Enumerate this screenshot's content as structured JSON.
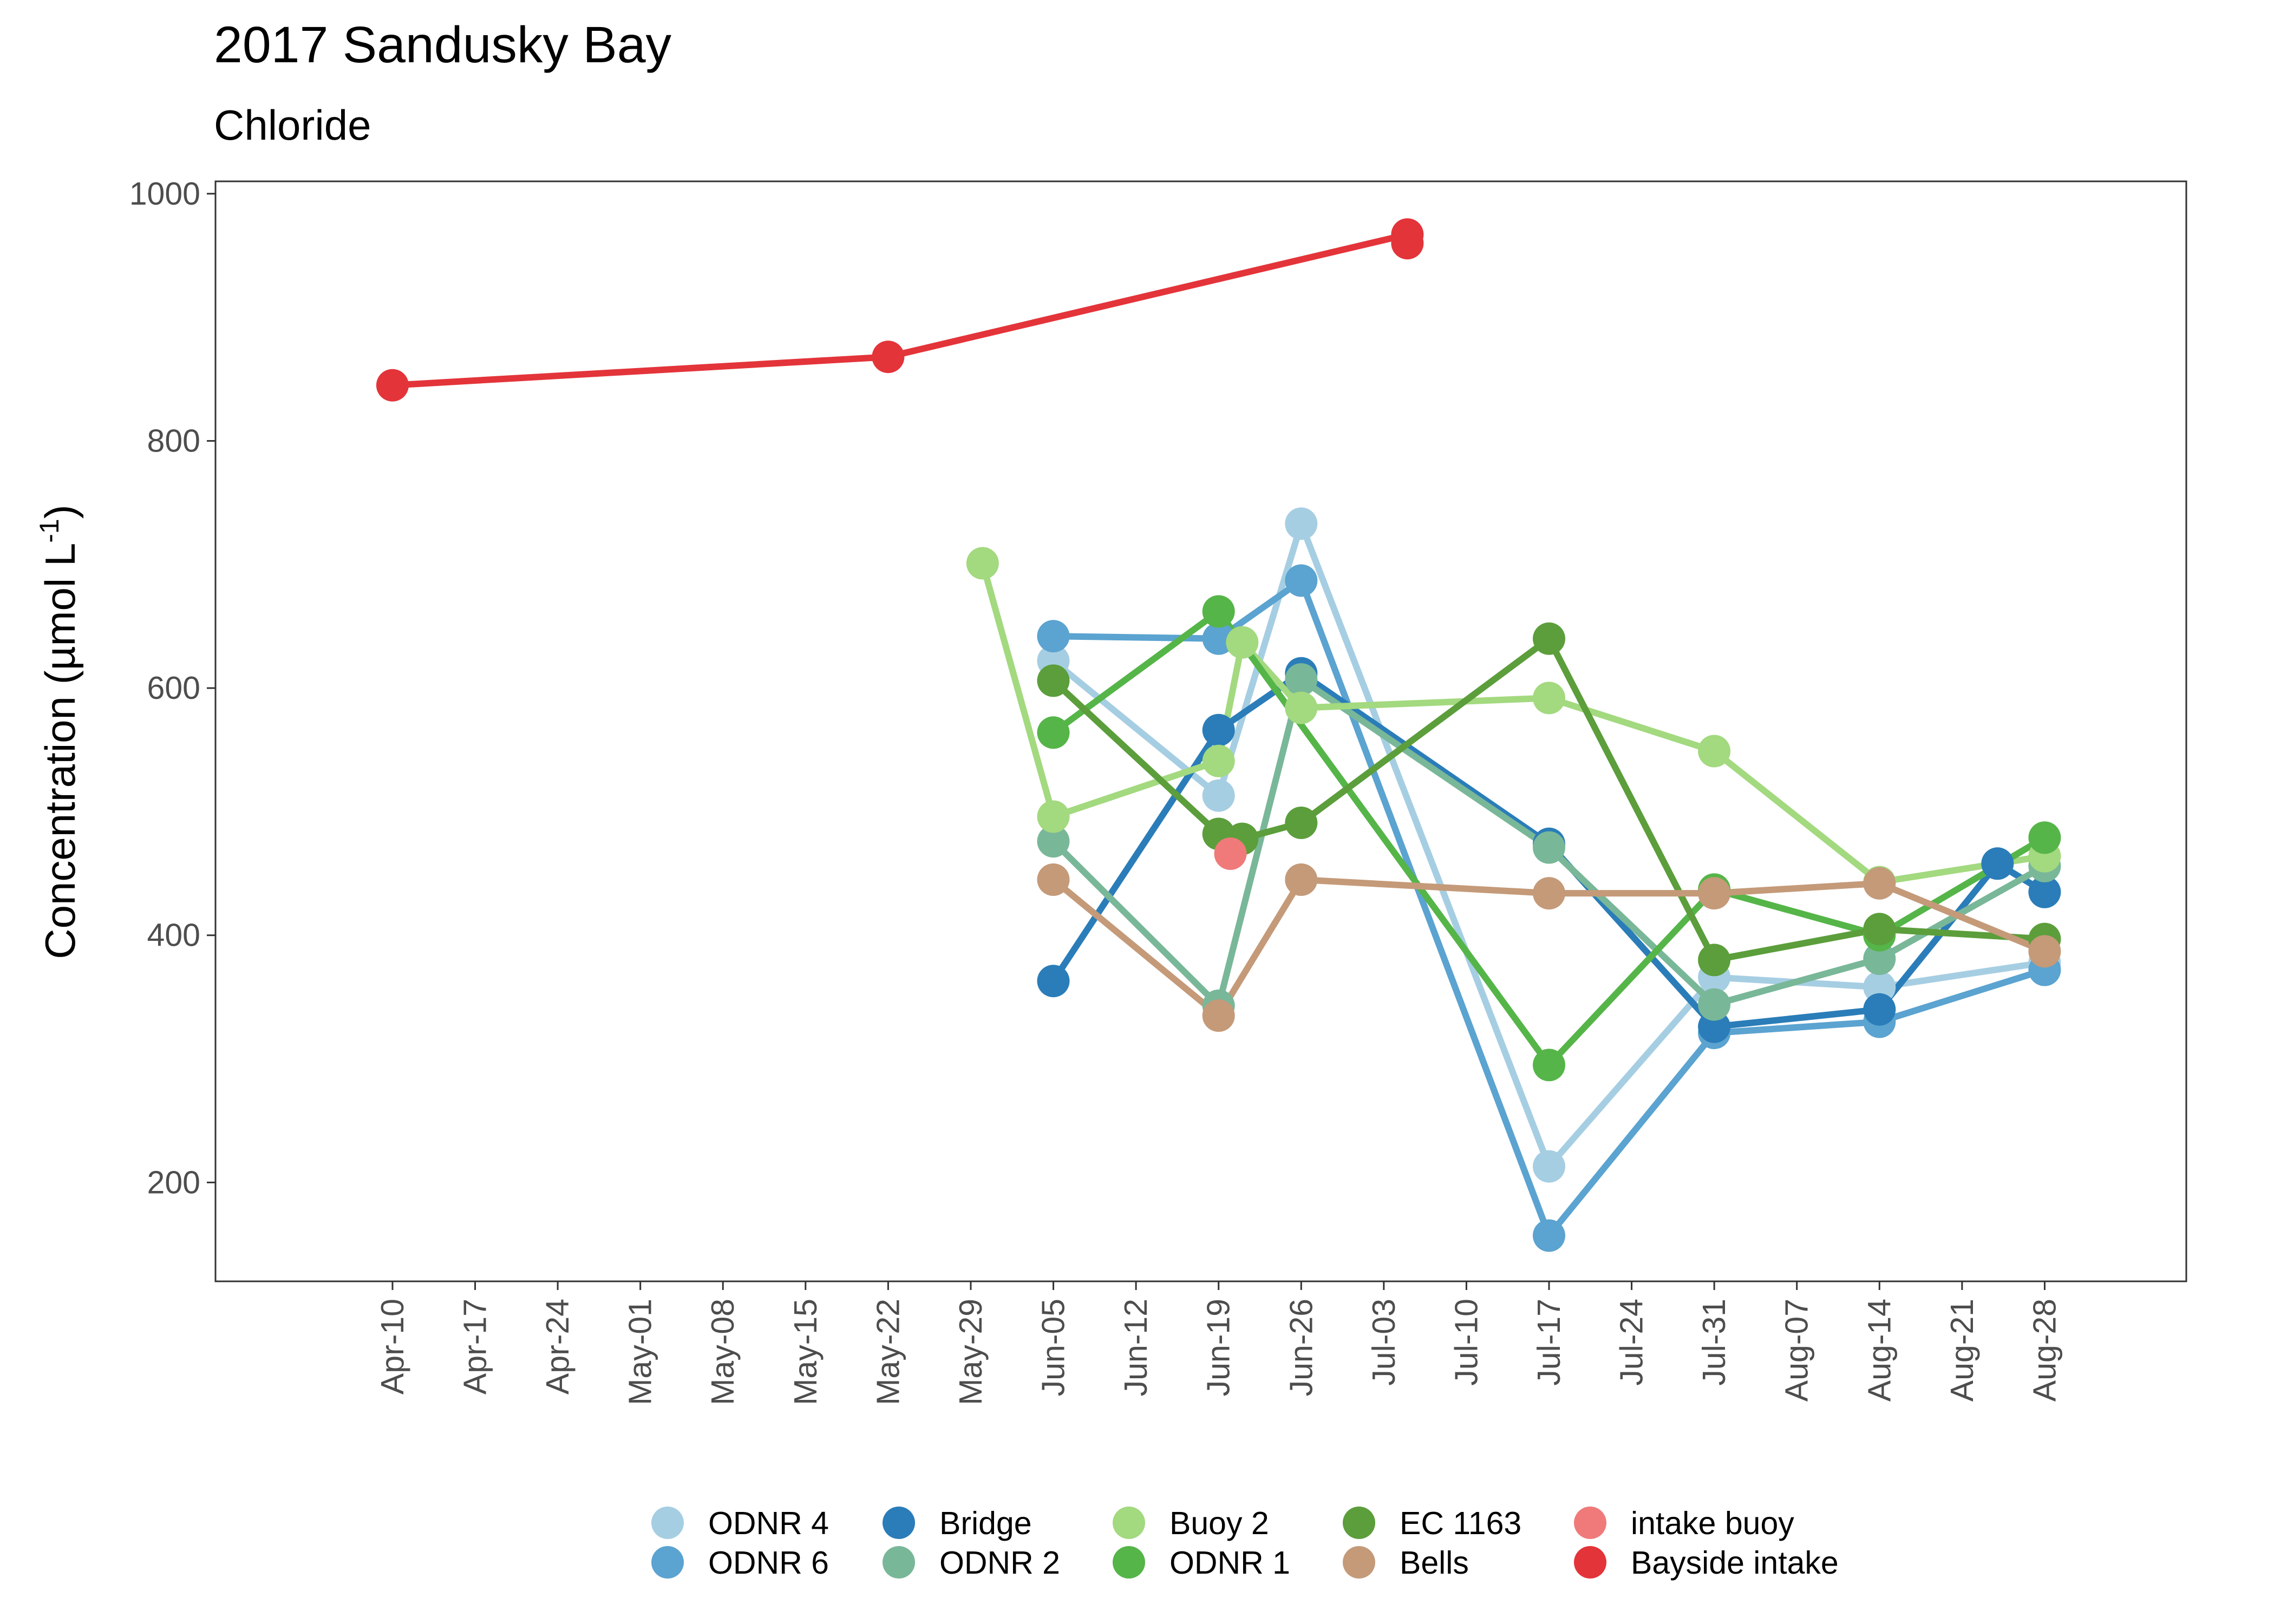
{
  "chart_data": {
    "type": "line",
    "title": "2017 Sandusky Bay",
    "subtitle": "Chloride",
    "xlabel": "",
    "ylabel": "Concentration (µmol L",
    "ylabel_sup": "-1",
    "ylabel_close": ")",
    "x_range": [
      "2017-03-26",
      "2017-09-09"
    ],
    "ylim": [
      120,
      1010
    ],
    "x_ticks": [
      "2017-04-10",
      "2017-04-17",
      "2017-04-24",
      "2017-05-01",
      "2017-05-08",
      "2017-05-15",
      "2017-05-22",
      "2017-05-29",
      "2017-06-05",
      "2017-06-12",
      "2017-06-19",
      "2017-06-26",
      "2017-07-03",
      "2017-07-10",
      "2017-07-17",
      "2017-07-24",
      "2017-07-31",
      "2017-08-07",
      "2017-08-14",
      "2017-08-21",
      "2017-08-28"
    ],
    "x_tick_labels": [
      "Apr-10",
      "Apr-17",
      "Apr-24",
      "May-01",
      "May-08",
      "May-15",
      "May-22",
      "May-29",
      "Jun-05",
      "Jun-12",
      "Jun-19",
      "Jun-26",
      "Jul-03",
      "Jul-10",
      "Jul-17",
      "Jul-24",
      "Jul-31",
      "Aug-07",
      "Aug-14",
      "Aug-21",
      "Aug-28"
    ],
    "y_ticks": [
      200,
      400,
      600,
      800,
      1000
    ],
    "grid": false,
    "legend_position": "bottom",
    "series": [
      {
        "name": "ODNR 4",
        "color": "#a6cee3",
        "points": [
          [
            "2017-06-05",
            622
          ],
          [
            "2017-06-19",
            513
          ],
          [
            "2017-06-26",
            733
          ],
          [
            "2017-07-17",
            213
          ],
          [
            "2017-07-31",
            366
          ],
          [
            "2017-08-14",
            358
          ],
          [
            "2017-08-28",
            378
          ]
        ]
      },
      {
        "name": "ODNR 6",
        "color": "#5ba3d0",
        "points": [
          [
            "2017-06-05",
            642
          ],
          [
            "2017-06-19",
            640
          ],
          [
            "2017-06-26",
            687
          ],
          [
            "2017-07-17",
            157
          ],
          [
            "2017-07-31",
            321
          ],
          [
            "2017-08-14",
            330
          ],
          [
            "2017-08-28",
            372
          ]
        ]
      },
      {
        "name": "Bridge",
        "color": "#2a7db8",
        "points": [
          [
            "2017-06-05",
            363
          ],
          [
            "2017-06-19",
            566
          ],
          [
            "2017-06-26",
            612
          ],
          [
            "2017-07-17",
            474
          ],
          [
            "2017-07-31",
            326
          ],
          [
            "2017-08-14",
            340
          ],
          [
            "2017-08-24",
            458
          ],
          [
            "2017-08-28",
            435
          ]
        ]
      },
      {
        "name": "ODNR 2",
        "color": "#79b799",
        "points": [
          [
            "2017-06-05",
            476
          ],
          [
            "2017-06-19",
            343
          ],
          [
            "2017-06-26",
            607
          ],
          [
            "2017-07-17",
            471
          ],
          [
            "2017-07-31",
            344
          ],
          [
            "2017-08-14",
            381
          ],
          [
            "2017-08-28",
            456
          ]
        ]
      },
      {
        "name": "Buoy 2",
        "color": "#a3d97f",
        "points": [
          [
            "2017-05-30",
            701
          ],
          [
            "2017-06-05",
            496
          ],
          [
            "2017-06-19",
            541
          ],
          [
            "2017-06-21",
            637
          ],
          [
            "2017-06-26",
            584
          ],
          [
            "2017-07-17",
            592
          ],
          [
            "2017-07-31",
            549
          ],
          [
            "2017-08-14",
            443
          ],
          [
            "2017-08-28",
            464
          ]
        ]
      },
      {
        "name": "ODNR 1",
        "color": "#55b548",
        "points": [
          [
            "2017-06-05",
            564
          ],
          [
            "2017-06-19",
            662
          ],
          [
            "2017-07-17",
            295
          ],
          [
            "2017-07-31",
            437
          ],
          [
            "2017-08-14",
            400
          ],
          [
            "2017-08-28",
            479
          ]
        ]
      },
      {
        "name": "EC 1163",
        "color": "#5b9e3b",
        "points": [
          [
            "2017-06-05",
            606
          ],
          [
            "2017-06-19",
            482
          ],
          [
            "2017-06-21",
            478
          ],
          [
            "2017-06-26",
            491
          ],
          [
            "2017-07-17",
            640
          ],
          [
            "2017-07-31",
            380
          ],
          [
            "2017-08-14",
            405
          ],
          [
            "2017-08-28",
            397
          ]
        ]
      },
      {
        "name": "Bells",
        "color": "#c49a79",
        "points": [
          [
            "2017-06-05",
            445
          ],
          [
            "2017-06-19",
            335
          ],
          [
            "2017-06-26",
            445
          ],
          [
            "2017-07-17",
            434
          ],
          [
            "2017-07-31",
            434
          ],
          [
            "2017-08-14",
            442
          ],
          [
            "2017-08-28",
            387
          ]
        ]
      },
      {
        "name": "intake buoy",
        "color": "#f07a7a",
        "points": [
          [
            "2017-06-20",
            466
          ]
        ]
      },
      {
        "name": "Bayside intake",
        "color": "#e3343a",
        "points": [
          [
            "2017-04-10",
            845
          ],
          [
            "2017-05-22",
            868
          ],
          [
            "2017-07-05",
            967
          ],
          [
            "2017-07-05",
            960
          ]
        ]
      }
    ]
  }
}
